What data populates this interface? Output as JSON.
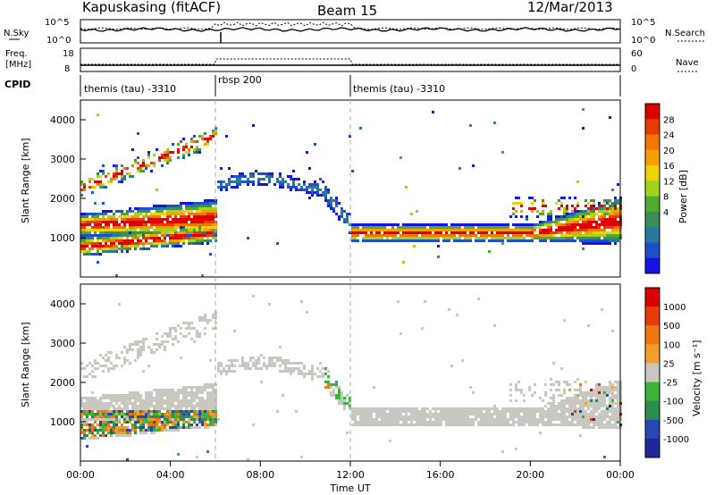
{
  "header": {
    "station": "Kapuskasing (fitACF)",
    "beam": "Beam 15",
    "date": "12/Mar/2013"
  },
  "nsky_panel": {
    "left_label": "N.Sky",
    "right_label": "N.Search",
    "left_ticks": [
      "10^5",
      "10^0"
    ],
    "right_ticks": [
      "10^5",
      "10^0"
    ]
  },
  "freq_panel": {
    "left_label_1": "Freq.",
    "left_label_2": "[MHz]",
    "right_label": "Nave",
    "left_ticks": [
      "18",
      "8"
    ],
    "right_ticks": [
      "60",
      "0"
    ]
  },
  "cpid": {
    "label": "CPID",
    "segments": [
      {
        "name": "themis (tau) -3310",
        "start_h": 0,
        "end_h": 6
      },
      {
        "name": "rbsp 200",
        "start_h": 6,
        "end_h": 12
      },
      {
        "name": "themis (tau) -3310",
        "start_h": 12,
        "end_h": 24
      }
    ]
  },
  "chart_data": [
    {
      "type": "heatmap",
      "name": "power",
      "ylabel": "Slant Range [km]",
      "y_ticks": [
        "1000",
        "2000",
        "3000",
        "4000"
      ],
      "ylim": [
        0,
        4500
      ],
      "colorbar_label": "Power [dB]",
      "colorbar_ticks": [
        "28",
        "24",
        "20",
        "16",
        "12",
        "8",
        "4"
      ],
      "colors": [
        "#1414e6",
        "#1e50c8",
        "#2878a0",
        "#3c8c5a",
        "#50aa32",
        "#a0d21e",
        "#f0d20a",
        "#f5a000",
        "#f07800",
        "#e63c00",
        "#dc0000"
      ]
    },
    {
      "type": "heatmap",
      "name": "velocity",
      "ylabel": "Slant Range [km]",
      "y_ticks": [
        "1000",
        "2000",
        "3000",
        "4000"
      ],
      "ylim": [
        0,
        4500
      ],
      "colorbar_label": "Velocity [m s⁻¹]",
      "colorbar_ticks": [
        "1000",
        "500",
        "100",
        "25",
        "-25",
        "-100",
        "-500",
        "-1000"
      ],
      "colors": [
        "#1e2896",
        "#2846b4",
        "#2d8c50",
        "#3cb43c",
        "#c8c8c0",
        "#f0a028",
        "#f07814",
        "#e63c0a",
        "#dc0000"
      ]
    }
  ],
  "x_axis": {
    "label": "Time UT",
    "ticks": [
      "00:00",
      "04:00",
      "08:00",
      "12:00",
      "16:00",
      "20:00",
      "00:00"
    ],
    "range_h": [
      0,
      24
    ]
  }
}
